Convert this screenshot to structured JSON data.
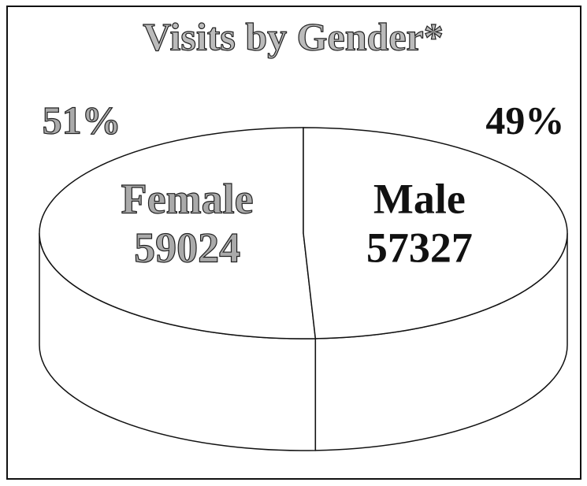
{
  "chart_data": {
    "type": "pie",
    "title": "Visits by Gender*",
    "categories": [
      "Female",
      "Male"
    ],
    "values": [
      59024,
      57327
    ],
    "percent_labels": [
      "51%",
      "49%"
    ],
    "colors": [
      "#ffffff",
      "#ffffff"
    ]
  }
}
